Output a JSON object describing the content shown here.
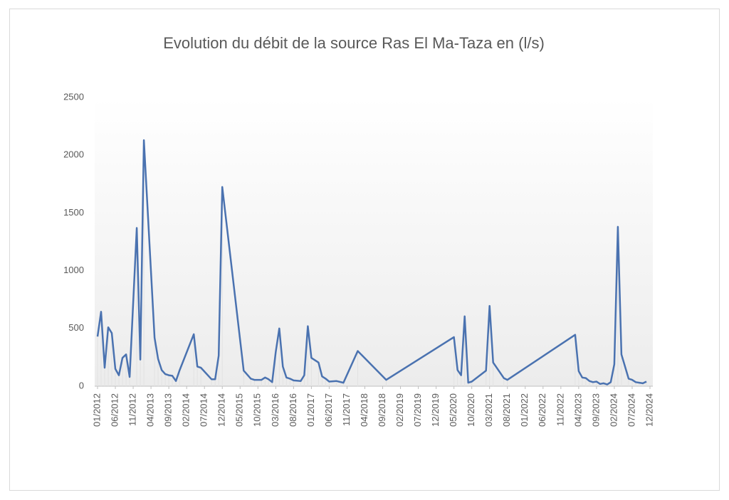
{
  "chart_data": {
    "type": "line",
    "title": "Evolution du débit de la source Ras El Ma-Taza en (l/s)",
    "x": [
      "01/2012",
      "02/2012",
      "03/2012",
      "04/2012",
      "05/2012",
      "06/2012",
      "07/2012",
      "08/2012",
      "09/2012",
      "10/2012",
      "12/2012",
      "01/2013",
      "02/2013",
      "05/2013",
      "06/2013",
      "07/2013",
      "08/2013",
      "09/2013",
      "10/2013",
      "11/2013",
      "12/2013",
      "04/2014",
      "05/2014",
      "06/2014",
      "09/2014",
      "10/2014",
      "11/2014",
      "12/2014",
      "06/2015",
      "08/2015",
      "09/2015",
      "11/2015",
      "12/2015",
      "01/2016",
      "02/2016",
      "03/2016",
      "04/2016",
      "05/2016",
      "06/2016",
      "07/2016",
      "08/2016",
      "10/2016",
      "11/2016",
      "12/2016",
      "01/2017",
      "03/2017",
      "04/2017",
      "05/2017",
      "06/2017",
      "08/2017",
      "10/2017",
      "02/2018",
      "10/2018",
      "05/2020",
      "06/2020",
      "07/2020",
      "08/2020",
      "09/2020",
      "10/2020",
      "02/2021",
      "03/2021",
      "04/2021",
      "07/2021",
      "08/2021",
      "03/2023",
      "04/2023",
      "05/2023",
      "06/2023",
      "07/2023",
      "08/2023",
      "09/2023",
      "10/2023",
      "11/2023",
      "12/2023",
      "01/2024",
      "02/2024",
      "03/2024",
      "04/2024",
      "06/2024",
      "07/2024",
      "08/2024",
      "09/2024",
      "10/2024",
      "11/2024"
    ],
    "values": [
      430,
      645,
      160,
      510,
      460,
      150,
      95,
      245,
      275,
      80,
      1370,
      230,
      2130,
      420,
      235,
      140,
      105,
      95,
      90,
      45,
      135,
      450,
      170,
      160,
      60,
      60,
      265,
      1725,
      135,
      65,
      55,
      55,
      75,
      60,
      35,
      295,
      500,
      170,
      75,
      65,
      50,
      45,
      95,
      520,
      245,
      205,
      85,
      65,
      40,
      45,
      30,
      305,
      55,
      425,
      140,
      95,
      605,
      30,
      40,
      135,
      695,
      205,
      70,
      55,
      445,
      130,
      75,
      70,
      45,
      35,
      40,
      20,
      25,
      15,
      35,
      190,
      1380,
      275,
      65,
      55,
      35,
      30,
      25,
      40
    ],
    "color": "#4a72b0",
    "xlim": [
      "01/2012",
      "12/2024"
    ],
    "xticks": [
      "01/2012",
      "06/2012",
      "11/2012",
      "04/2013",
      "09/2013",
      "02/2014",
      "07/2014",
      "12/2014",
      "05/2015",
      "10/2015",
      "03/2016",
      "08/2016",
      "01/2017",
      "06/2017",
      "11/2017",
      "04/2018",
      "09/2018",
      "02/2019",
      "07/2019",
      "12/2019",
      "05/2020",
      "10/2020",
      "03/2021",
      "08/2021",
      "01/2022",
      "06/2022",
      "11/2022",
      "04/2023",
      "09/2023",
      "02/2024",
      "07/2024",
      "12/2024"
    ],
    "ylim": [
      0,
      2500
    ],
    "yticks": [
      0,
      500,
      1000,
      1500,
      2000,
      2500
    ]
  }
}
